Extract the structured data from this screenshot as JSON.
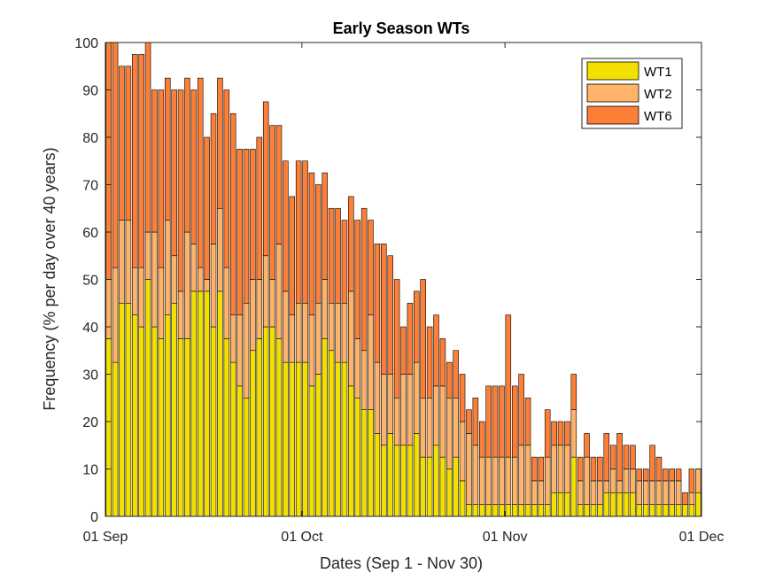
{
  "chart_data": {
    "type": "bar",
    "stacked": true,
    "title": "Early Season WTs",
    "xlabel": "Dates (Sep 1 - Nov 30)",
    "ylabel": "Frequency (% per day over 40 years)",
    "ylim": [
      0,
      100
    ],
    "yticks": [
      0,
      10,
      20,
      30,
      40,
      50,
      60,
      70,
      80,
      90,
      100
    ],
    "xlim": [
      0,
      91
    ],
    "xticks": [
      {
        "day": 1,
        "label": "01 Sep"
      },
      {
        "day": 31,
        "label": "01 Oct"
      },
      {
        "day": 62,
        "label": "01 Nov"
      },
      {
        "day": 92,
        "label": "01 Dec"
      }
    ],
    "legend_position": "top-right",
    "series": [
      {
        "name": "WT1",
        "color": "#f4e000",
        "values": [
          37.5,
          32.5,
          45,
          45,
          42.5,
          40,
          50,
          40,
          37.5,
          42.5,
          45,
          37.5,
          37.5,
          47.5,
          47.5,
          47.5,
          40,
          47.5,
          37.5,
          32.5,
          27.5,
          25,
          35,
          37.5,
          40,
          40,
          37.5,
          32.5,
          32.5,
          32.5,
          32.5,
          27.5,
          30,
          37.5,
          35,
          32.5,
          32.5,
          27.5,
          25,
          22.5,
          22.5,
          17.5,
          15,
          17.5,
          15,
          15,
          15,
          17.5,
          12.5,
          12.5,
          15,
          12.5,
          10,
          12.5,
          7.5,
          2.5,
          2.5,
          2.5,
          2.5,
          2.5,
          2.5,
          2.5,
          2.5,
          2.5,
          2.5,
          2.5,
          2.5,
          2.5,
          5,
          5,
          5,
          12.5,
          2.5,
          2.5,
          2.5,
          2.5,
          5,
          5,
          5,
          5,
          5,
          2.5,
          2.5,
          2.5,
          2.5,
          2.5,
          2.5,
          2.5,
          2.5,
          2.5,
          5
        ]
      },
      {
        "name": "WT2",
        "color": "#feb36a",
        "values": [
          12.5,
          20,
          17.5,
          17.5,
          10,
          12.5,
          10,
          20,
          15,
          20,
          10,
          10,
          22.5,
          10,
          5,
          2.5,
          17.5,
          17.5,
          15,
          10,
          15,
          20,
          15,
          12.5,
          15,
          10,
          20,
          15,
          10,
          12.5,
          12.5,
          15,
          15,
          12.5,
          10,
          12.5,
          12.5,
          20,
          12.5,
          12.5,
          20,
          15,
          15,
          12.5,
          10,
          15,
          15,
          15,
          12.5,
          12.5,
          12.5,
          15,
          15,
          12.5,
          12.5,
          15,
          12.5,
          10,
          10,
          10,
          10,
          10,
          10,
          12.5,
          12.5,
          5,
          5,
          10,
          10,
          10,
          10,
          10,
          5,
          10,
          5,
          5,
          2.5,
          5,
          2.5,
          5,
          5,
          5,
          5,
          5,
          5,
          5,
          5,
          5,
          0,
          2.5,
          5
        ]
      },
      {
        "name": "WT6",
        "color": "#fd7f37",
        "values": [
          50,
          47.5,
          32.5,
          32.5,
          45,
          45,
          40,
          30,
          37.5,
          30,
          35,
          42.5,
          32.5,
          32.5,
          40,
          30,
          27.5,
          27.5,
          37.5,
          42.5,
          35,
          32.5,
          27.5,
          30,
          32.5,
          32.5,
          25,
          27.5,
          25,
          30,
          30,
          30,
          25,
          22.5,
          20,
          20,
          17.5,
          20,
          25,
          30,
          20,
          25,
          27.5,
          25,
          25,
          10,
          15,
          15,
          25,
          15,
          15,
          10,
          7.5,
          10,
          10,
          5,
          10,
          7.5,
          15,
          15,
          15,
          30,
          15,
          15,
          10,
          5,
          5,
          10,
          5,
          5,
          5,
          7.5,
          5,
          5,
          5,
          5,
          10,
          5,
          10,
          5,
          5,
          2.5,
          2.5,
          7.5,
          5,
          2.5,
          2.5,
          2.5,
          2.5,
          5,
          0
        ]
      }
    ]
  }
}
